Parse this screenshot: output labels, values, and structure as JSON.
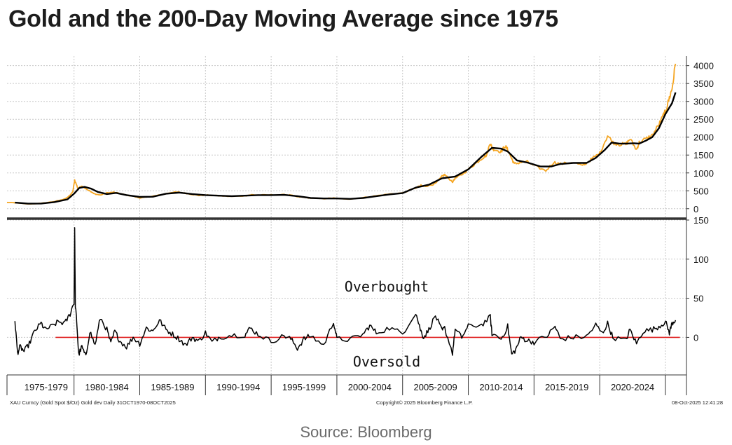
{
  "title": "Gold and the 200-Day Moving Average since 1975",
  "source": "Source: Bloomberg",
  "footer": {
    "left": "XAU Curncy (Gold Spot  $/Oz) Gold dev Daily 31OCT1970-08OCT2025",
    "center": "Copyright© 2025 Bloomberg Finance L.P.",
    "right": "08-Oct-2025 12:41:28"
  },
  "colors": {
    "price": "#f5a623",
    "moving_average": "#000000",
    "deviation": "#000000",
    "zero_line": "#e02020",
    "grid": "#c8c8c8",
    "divider": "#333333"
  },
  "chart_data": [
    {
      "type": "line",
      "panel": "top",
      "x_range": [
        1974.9,
        2026.6
      ],
      "ylim": [
        -200,
        4150
      ],
      "yticks": [
        0,
        500,
        1000,
        1500,
        2000,
        2500,
        3000,
        3500,
        4000
      ],
      "grid": true,
      "series": [
        {
          "key": "price",
          "x": [
            1974.9,
            1975.5,
            1976.5,
            1977.5,
            1978.5,
            1979.0,
            1979.5,
            1979.9,
            1980.05,
            1980.3,
            1980.6,
            1981.0,
            1981.5,
            1982.0,
            1982.5,
            1983.0,
            1983.5,
            1984.0,
            1984.5,
            1985.0,
            1985.5,
            1986.0,
            1986.5,
            1987.0,
            1987.5,
            1988.0,
            1988.5,
            1989.0,
            1989.5,
            1990.0,
            1991.0,
            1992.0,
            1993.0,
            1993.5,
            1994.0,
            1995.0,
            1996.0,
            1996.5,
            1997.0,
            1997.5,
            1998.0,
            1999.0,
            1999.7,
            2000.0,
            2001.0,
            2002.0,
            2003.0,
            2004.0,
            2005.0,
            2006.0,
            2006.4,
            2006.6,
            2007.0,
            2007.5,
            2008.0,
            2008.2,
            2008.8,
            2009.0,
            2009.5,
            2010.0,
            2010.5,
            2011.0,
            2011.4,
            2011.67,
            2011.8,
            2012.0,
            2012.5,
            2012.8,
            2013.0,
            2013.3,
            2013.5,
            2014.0,
            2014.5,
            2015.0,
            2015.9,
            2016.5,
            2017.0,
            2018.0,
            2018.7,
            2019.0,
            2019.5,
            2020.0,
            2020.6,
            2021.0,
            2021.5,
            2022.0,
            2022.3,
            2022.8,
            2023.0,
            2023.5,
            2024.0,
            2024.5,
            2024.9,
            2025.0,
            2025.3,
            2025.5,
            2025.77
          ],
          "y": [
            175,
            165,
            130,
            150,
            200,
            240,
            310,
            460,
            800,
            560,
            640,
            540,
            420,
            380,
            440,
            460,
            420,
            380,
            350,
            300,
            320,
            350,
            380,
            420,
            460,
            460,
            430,
            400,
            370,
            380,
            360,
            340,
            360,
            390,
            380,
            385,
            390,
            380,
            330,
            320,
            295,
            280,
            300,
            285,
            270,
            310,
            360,
            410,
            440,
            580,
            650,
            620,
            650,
            700,
            900,
            950,
            750,
            850,
            950,
            1100,
            1250,
            1400,
            1500,
            1850,
            1700,
            1650,
            1600,
            1750,
            1650,
            1400,
            1250,
            1300,
            1310,
            1200,
            1060,
            1300,
            1250,
            1300,
            1200,
            1280,
            1420,
            1550,
            2050,
            1850,
            1800,
            1800,
            1950,
            1650,
            1850,
            1950,
            2050,
            2350,
            2650,
            2700,
            3100,
            3350,
            4050
          ]
        },
        {
          "key": "moving_average",
          "x": [
            1975.5,
            1976.5,
            1977.5,
            1978.5,
            1979.5,
            1980.0,
            1980.4,
            1980.8,
            1981.3,
            1981.8,
            1982.5,
            1983.2,
            1984.0,
            1985.0,
            1986.0,
            1987.0,
            1988.0,
            1989.0,
            1990.0,
            1991.0,
            1992.0,
            1993.0,
            1994.0,
            1995.0,
            1996.0,
            1997.0,
            1998.0,
            1999.0,
            2000.0,
            2001.0,
            2002.0,
            2003.0,
            2004.0,
            2005.0,
            2006.0,
            2007.0,
            2008.0,
            2009.0,
            2010.0,
            2011.0,
            2011.8,
            2012.5,
            2013.0,
            2013.7,
            2014.5,
            2015.5,
            2016.3,
            2017.0,
            2018.0,
            2019.0,
            2019.7,
            2020.4,
            2020.9,
            2021.5,
            2022.0,
            2022.6,
            2023.0,
            2023.5,
            2024.0,
            2024.5,
            2025.0,
            2025.5,
            2025.77
          ],
          "y": [
            170,
            140,
            145,
            185,
            260,
            420,
            580,
            610,
            560,
            470,
            410,
            440,
            380,
            330,
            335,
            420,
            450,
            410,
            380,
            365,
            350,
            365,
            380,
            380,
            385,
            350,
            300,
            285,
            285,
            275,
            300,
            350,
            400,
            435,
            590,
            670,
            850,
            900,
            1100,
            1450,
            1700,
            1680,
            1600,
            1350,
            1290,
            1180,
            1180,
            1250,
            1280,
            1280,
            1420,
            1650,
            1850,
            1820,
            1820,
            1830,
            1820,
            1900,
            2000,
            2250,
            2650,
            2950,
            3250
          ]
        }
      ]
    },
    {
      "type": "line",
      "panel": "bottom",
      "x_range": [
        1974.9,
        2026.6
      ],
      "ylim": [
        -48,
        150
      ],
      "yticks": [
        0,
        50,
        100,
        150
      ],
      "grid": true,
      "annotations": [
        "Overbought",
        "Oversold"
      ],
      "series": [
        {
          "key": "deviation",
          "x": [
            1975.5,
            1975.7,
            1975.9,
            1976.2,
            1976.6,
            1977.0,
            1977.5,
            1977.8,
            1978.3,
            1978.8,
            1979.3,
            1979.7,
            1980.0,
            1980.05,
            1980.1,
            1980.2,
            1980.35,
            1980.6,
            1980.9,
            1981.2,
            1981.6,
            1982.0,
            1982.5,
            1982.8,
            1983.1,
            1983.5,
            1984.0,
            1984.5,
            1985.0,
            1985.5,
            1986.0,
            1986.5,
            1987.0,
            1987.5,
            1988.0,
            1988.5,
            1989.0,
            1989.5,
            1990.0,
            1990.5,
            1991.0,
            1992.0,
            1993.0,
            1993.4,
            1994.0,
            1995.0,
            1996.0,
            1996.5,
            1997.0,
            1997.5,
            1998.0,
            1999.0,
            1999.75,
            2000.0,
            2001.0,
            2002.0,
            2002.5,
            2003.0,
            2004.0,
            2005.0,
            2006.0,
            2006.35,
            2006.6,
            2007.0,
            2007.5,
            2008.0,
            2008.2,
            2008.8,
            2009.0,
            2009.5,
            2010.0,
            2011.0,
            2011.67,
            2011.8,
            2012.5,
            2013.0,
            2013.3,
            2013.6,
            2014.0,
            2014.5,
            2015.0,
            2016.0,
            2016.6,
            2017.0,
            2018.0,
            2019.0,
            2019.7,
            2020.2,
            2020.6,
            2021.0,
            2022.0,
            2022.3,
            2022.8,
            2023.3,
            2024.0,
            2024.5,
            2025.0,
            2025.3,
            2025.5,
            2025.77
          ],
          "y": [
            22,
            -20,
            -12,
            -18,
            -8,
            8,
            18,
            10,
            14,
            20,
            18,
            30,
            45,
            140,
            40,
            22,
            -22,
            -12,
            -25,
            8,
            -10,
            25,
            10,
            -8,
            8,
            -5,
            -12,
            0,
            -8,
            12,
            8,
            22,
            10,
            4,
            -2,
            -10,
            0,
            -5,
            6,
            -6,
            0,
            3,
            3,
            12,
            4,
            -5,
            2,
            -2,
            -14,
            -2,
            2,
            -10,
            20,
            -2,
            -3,
            4,
            15,
            6,
            12,
            5,
            32,
            10,
            0,
            10,
            28,
            8,
            12,
            -20,
            10,
            0,
            14,
            16,
            26,
            5,
            -2,
            14,
            -22,
            -16,
            0,
            -4,
            -6,
            2,
            14,
            -2,
            0,
            1,
            16,
            5,
            18,
            0,
            -4,
            10,
            -8,
            8,
            10,
            14,
            20,
            6,
            18,
            22
          ]
        },
        {
          "key": "zero_line",
          "x": [
            1978.6,
            2026.1
          ],
          "y": [
            0,
            0
          ]
        }
      ]
    }
  ],
  "x_axis": {
    "tick_labels": [
      "1975-1979",
      "1980-1984",
      "1985-1989",
      "1990-1994",
      "1995-1999",
      "2000-2004",
      "2005-2009",
      "2010-2014",
      "2015-2019",
      "2020-2024"
    ]
  }
}
